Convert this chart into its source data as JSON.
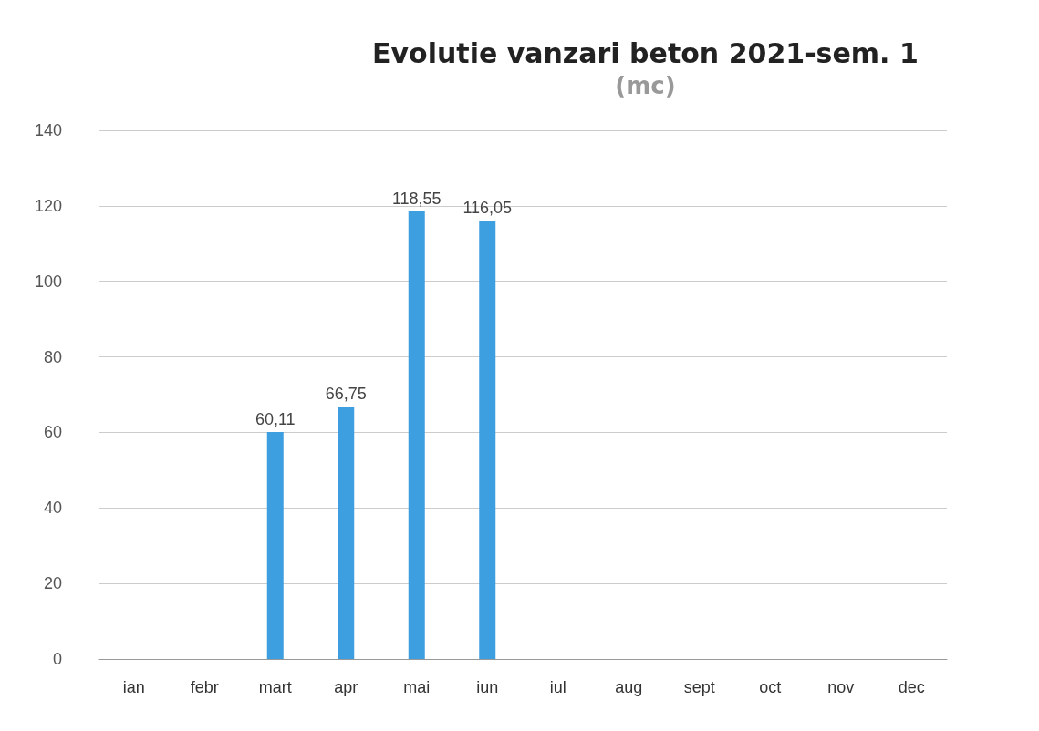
{
  "chart_data": {
    "type": "bar",
    "title": "Evolutie vanzari beton 2021-sem. 1",
    "subtitle": "(mc)",
    "categories": [
      "ian",
      "febr",
      "mart",
      "apr",
      "mai",
      "iun",
      "iul",
      "aug",
      "sept",
      "oct",
      "nov",
      "dec"
    ],
    "values": [
      null,
      null,
      60.11,
      66.75,
      118.55,
      116.05,
      null,
      null,
      null,
      null,
      null,
      null
    ],
    "value_labels": [
      null,
      null,
      "60,11",
      "66,75",
      "118,55",
      "116,05",
      null,
      null,
      null,
      null,
      null,
      null
    ],
    "color": "#3d9fe0",
    "ylim": [
      0,
      140
    ],
    "yticks": [
      0,
      20,
      40,
      60,
      80,
      100,
      120,
      140
    ],
    "grid": "y"
  }
}
